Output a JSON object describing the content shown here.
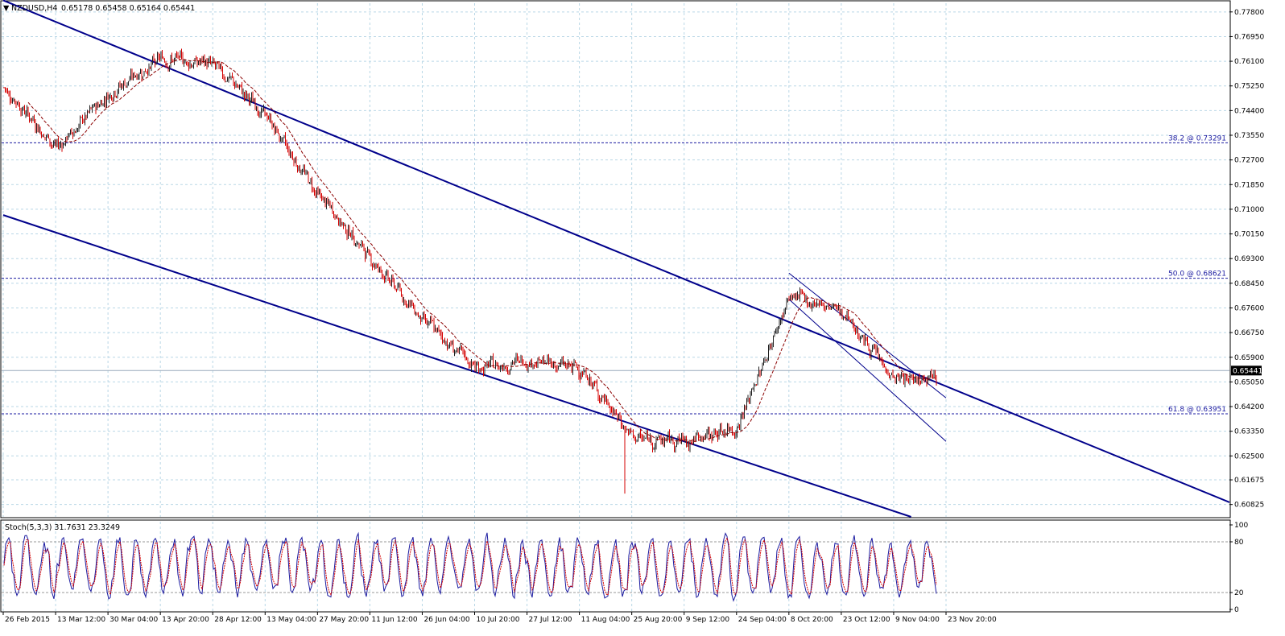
{
  "header": {
    "symbol_label": "NZDUSD,H4",
    "ohlc": "0.65178 0.65458 0.65164 0.65441",
    "collapse_glyph": "▼"
  },
  "price_axis": {
    "labels": [
      "0.77800",
      "0.76950",
      "0.76100",
      "0.75250",
      "0.74400",
      "0.73550",
      "0.72700",
      "0.71850",
      "0.71000",
      "0.70150",
      "0.69300",
      "0.68450",
      "0.67600",
      "0.66750",
      "0.65900",
      "0.65050",
      "0.64200",
      "0.63350",
      "0.62500",
      "0.61675",
      "0.60825"
    ],
    "current_price": "0.65441"
  },
  "time_axis": {
    "labels": [
      "26 Feb 2015",
      "13 Mar 12:00",
      "30 Mar 04:00",
      "13 Apr 20:00",
      "28 Apr 12:00",
      "13 May 04:00",
      "27 May 20:00",
      "11 Jun 12:00",
      "26 Jun 04:00",
      "10 Jul 20:00",
      "27 Jul 12:00",
      "11 Aug 04:00",
      "25 Aug 20:00",
      "9 Sep 12:00",
      "24 Sep 04:00",
      "8 Oct 20:00",
      "23 Oct 12:00",
      "9 Nov 04:00",
      "23 Nov 20:00"
    ]
  },
  "fib_levels": [
    {
      "label": "38.2 @ 0.73291",
      "value": 0.73291
    },
    {
      "label": "50.0 @ 0.68621",
      "value": 0.68621
    },
    {
      "label": "61.8 @ 0.63951",
      "value": 0.63951
    }
  ],
  "stoch_panel": {
    "title": "Stoch(5,3,3) 31.7631 23.3249",
    "levels": [
      "100",
      "80",
      "20",
      "0"
    ]
  },
  "colors": {
    "bull": "#202020",
    "bear": "#d40000",
    "ma": "#8b0000",
    "channel": "#00008b",
    "fib": "#1a1aa0",
    "grid": "#b9d7e6",
    "stoch_main": "#1a1aa0",
    "stoch_signal": "#d40000"
  },
  "chart_data": {
    "type": "candlestick",
    "symbol": "NZDUSD",
    "timeframe": "H4",
    "ylim": [
      0.604,
      0.781
    ],
    "price_path": [
      {
        "t": "26 Feb 2015",
        "price": 0.752
      },
      {
        "t": "13 Mar 12:00",
        "price": 0.731
      },
      {
        "t": "30 Mar 04:00",
        "price": 0.75
      },
      {
        "t": "13 Apr 20:00",
        "price": 0.762
      },
      {
        "t": "28 Apr 12:00",
        "price": 0.76
      },
      {
        "t": "13 May 04:00",
        "price": 0.742
      },
      {
        "t": "27 May 20:00",
        "price": 0.715
      },
      {
        "t": "11 Jun 12:00",
        "price": 0.693
      },
      {
        "t": "26 Jun 04:00",
        "price": 0.672
      },
      {
        "t": "10 Jul 20:00",
        "price": 0.655
      },
      {
        "t": "27 Jul 12:00",
        "price": 0.658
      },
      {
        "t": "11 Aug 04:00",
        "price": 0.655
      },
      {
        "t": "25 Aug 20:00",
        "price": 0.631
      },
      {
        "t": "9 Sep 12:00",
        "price": 0.63
      },
      {
        "t": "24 Sep 04:00",
        "price": 0.635
      },
      {
        "t": "8 Oct 20:00",
        "price": 0.68
      },
      {
        "t": "23 Oct 12:00",
        "price": 0.675
      },
      {
        "t": "9 Nov 04:00",
        "price": 0.651
      },
      {
        "t": "23 Nov 20:00",
        "price": 0.6544
      }
    ],
    "events": {
      "high": {
        "t": "13 Apr 20:00",
        "price": 0.776
      },
      "spike_low": {
        "t": "25 Aug 20:00",
        "price": 0.612
      },
      "range_low": {
        "t": "9 Sep 12:00",
        "price": 0.623
      },
      "oct_high": {
        "t": "8 Oct 20:00",
        "price": 0.688
      }
    },
    "channels": {
      "upper": [
        {
          "t": "26 Feb 2015",
          "price": 0.782
        },
        {
          "t": "23 Nov 20:00",
          "price": 0.649
        }
      ],
      "lower": [
        {
          "t": "26 Feb 2015",
          "price": 0.708
        },
        {
          "t": "9 Nov 04:00",
          "price": 0.606
        }
      ],
      "small_upper": [
        {
          "t": "8 Oct 20:00",
          "price": 0.688
        },
        {
          "t": "23 Nov 20:00",
          "price": 0.645
        }
      ],
      "small_lower": [
        {
          "t": "8 Oct 20:00",
          "price": 0.679
        },
        {
          "t": "23 Nov 20:00",
          "price": 0.63
        }
      ]
    },
    "grid": true
  }
}
